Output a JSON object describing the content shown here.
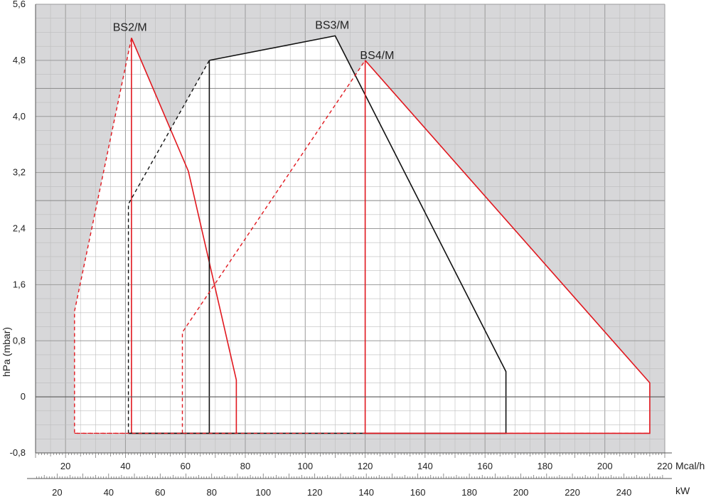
{
  "chart_data": {
    "type": "line",
    "title": "",
    "ylabel": "hPa (mbar)",
    "xlabel": "Mcal/h",
    "x2label": "kW",
    "xlim": [
      10,
      220
    ],
    "ylim": [
      -0.8,
      5.6
    ],
    "x_ticks": [
      20,
      40,
      60,
      80,
      100,
      120,
      140,
      160,
      180,
      200,
      220
    ],
    "y_ticks": [
      "-0,8",
      "0",
      "0,8",
      "1,6",
      "2,4",
      "3,2",
      "4,0",
      "4,8",
      "5,6"
    ],
    "y_tick_values": [
      -0.8,
      0,
      0.8,
      1.6,
      2.4,
      3.2,
      4.0,
      4.8,
      5.6
    ],
    "kw_ticks": [
      20,
      40,
      60,
      80,
      100,
      120,
      140,
      160,
      180,
      200,
      220,
      240
    ],
    "kw_per_mcal": 1.163,
    "grid": true,
    "colors": {
      "red": "#e1171e",
      "black": "#111111",
      "shade": "#d7d7d9",
      "grid": "#999999"
    },
    "series": [
      {
        "name": "BS2/M",
        "label_at": [
          41.5,
          5.22
        ],
        "color": "#e1171e",
        "dashed": [
          [
            42,
            -0.52
          ],
          [
            23,
            -0.52
          ],
          [
            23,
            1.22
          ],
          [
            42,
            5.12
          ]
        ],
        "solid": [
          [
            42,
            5.12
          ],
          [
            42,
            -0.52
          ]
        ],
        "solid2": [
          [
            42,
            5.12
          ],
          [
            61,
            3.22
          ],
          [
            77,
            0.24
          ],
          [
            77,
            -0.52
          ],
          [
            42,
            -0.52
          ]
        ]
      },
      {
        "name": "BS3/M",
        "label_at": [
          109,
          5.25
        ],
        "color": "#111111",
        "dashed": [
          [
            41,
            -0.52
          ],
          [
            41,
            2.75
          ],
          [
            68,
            4.8
          ]
        ],
        "solid": [
          [
            68,
            4.8
          ],
          [
            110,
            5.15
          ],
          [
            167,
            0.36
          ],
          [
            167,
            -0.52
          ],
          [
            68,
            -0.52
          ],
          [
            68,
            4.8
          ]
        ],
        "solid2": [
          [
            41,
            -0.52
          ],
          [
            68,
            -0.52
          ]
        ]
      },
      {
        "name": "BS4/M",
        "label_at": [
          124,
          4.82
        ],
        "color": "#e1171e",
        "dashed": [
          [
            59,
            -0.52
          ],
          [
            59,
            0.92
          ],
          [
            120,
            4.8
          ]
        ],
        "solid": [
          [
            120,
            4.8
          ],
          [
            120,
            -0.52
          ]
        ],
        "solid2": [
          [
            120,
            4.8
          ],
          [
            215,
            0.2
          ],
          [
            215,
            -0.52
          ],
          [
            120,
            -0.52
          ]
        ]
      }
    ]
  }
}
